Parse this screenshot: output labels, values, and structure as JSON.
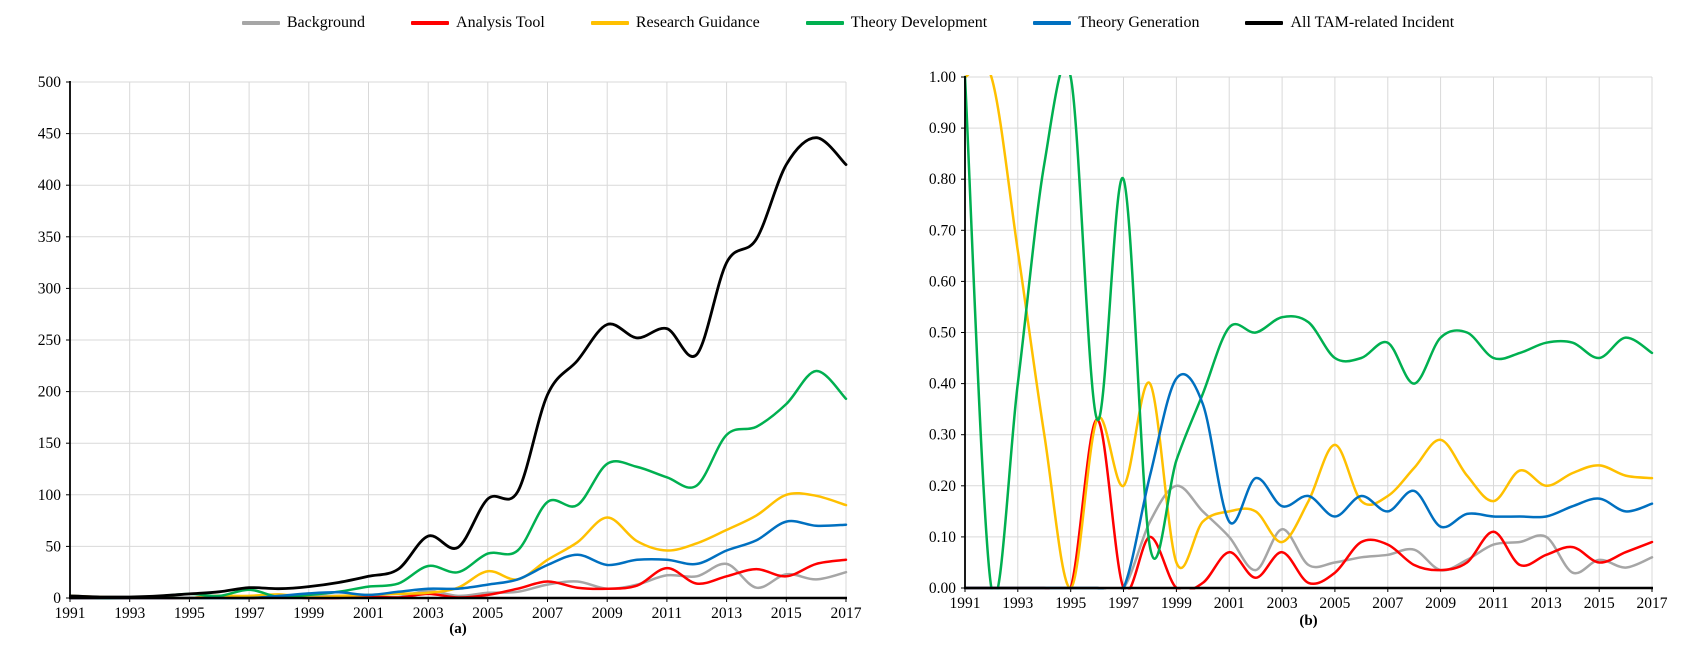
{
  "legend": {
    "items": [
      {
        "label": "Background",
        "color": "#A6A6A6"
      },
      {
        "label": "Analysis Tool",
        "color": "#FF0000"
      },
      {
        "label": "Research Guidance",
        "color": "#FFC000"
      },
      {
        "label": "Theory Development",
        "color": "#00B050"
      },
      {
        "label": "Theory Generation",
        "color": "#0070C0"
      },
      {
        "label": "All TAM-related Incident",
        "color": "#000000"
      }
    ]
  },
  "grid_color": "#D9D9D9",
  "axis_color": "#000000",
  "chart_data": [
    {
      "type": "line",
      "caption": "(a)",
      "title": "",
      "xlabel": "",
      "ylabel": "",
      "x": [
        1991,
        1992,
        1993,
        1994,
        1995,
        1996,
        1997,
        1998,
        1999,
        2000,
        2001,
        2002,
        2003,
        2004,
        2005,
        2006,
        2007,
        2008,
        2009,
        2010,
        2011,
        2012,
        2013,
        2014,
        2015,
        2016,
        2017
      ],
      "x_tick_step": 2,
      "y_axis": {
        "min": 0,
        "max": 500,
        "step": 50,
        "decimals": 0
      },
      "grid": true,
      "legend_position": "top-shared",
      "series": [
        {
          "name": "Background",
          "color": "#A6A6A6",
          "width": 2.5,
          "values": [
            0,
            0,
            0,
            0,
            0,
            0,
            0,
            1,
            2,
            2,
            2,
            1,
            7,
            2,
            5,
            6,
            13,
            16,
            9,
            13,
            22,
            21,
            33,
            10,
            23,
            18,
            25
          ]
        },
        {
          "name": "Analysis Tool",
          "color": "#FF0000",
          "width": 2.5,
          "values": [
            0,
            0,
            0,
            0,
            0,
            2,
            0,
            1,
            0,
            0,
            1.5,
            0.5,
            4,
            0.5,
            3,
            9,
            16,
            10,
            9,
            12,
            29,
            14,
            21,
            28,
            21,
            33,
            37
          ]
        },
        {
          "name": "Research Guidance",
          "color": "#FFC000",
          "width": 2.5,
          "values": [
            2,
            1,
            0.7,
            0.6,
            0,
            2,
            2,
            3.5,
            0.5,
            2,
            3,
            4,
            5,
            10,
            26,
            18,
            37,
            54,
            78,
            55,
            46,
            53,
            66,
            80,
            100,
            99,
            90
          ]
        },
        {
          "name": "Theory Development",
          "color": "#00B050",
          "width": 2.5,
          "values": [
            2,
            0,
            0.5,
            1.7,
            4,
            2,
            8,
            1,
            3,
            6,
            11,
            14,
            31,
            25,
            43,
            46,
            93,
            90,
            130,
            127,
            117,
            109,
            158,
            166,
            188,
            220,
            193
          ]
        },
        {
          "name": "Theory Generation",
          "color": "#0070C0",
          "width": 2.5,
          "values": [
            0,
            0,
            0,
            0,
            0,
            0,
            0,
            2,
            4.5,
            5.5,
            3,
            6,
            9,
            9,
            13,
            18,
            32,
            42,
            32,
            37,
            37,
            33,
            46,
            56,
            74,
            70,
            71
          ]
        },
        {
          "name": "All TAM-related Incident",
          "color": "#000000",
          "width": 2.8,
          "values": [
            2,
            1,
            1,
            2,
            4,
            6,
            10,
            9,
            11,
            15,
            21,
            28,
            60,
            49,
            96,
            103,
            197,
            230,
            265,
            252,
            261,
            236,
            325,
            348,
            420,
            446,
            420
          ]
        }
      ]
    },
    {
      "type": "line",
      "caption": "(b)",
      "title": "",
      "xlabel": "",
      "ylabel": "",
      "x": [
        1991,
        1992,
        1993,
        1994,
        1995,
        1996,
        1997,
        1998,
        1999,
        2000,
        2001,
        2002,
        2003,
        2004,
        2005,
        2006,
        2007,
        2008,
        2009,
        2010,
        2011,
        2012,
        2013,
        2014,
        2015,
        2016,
        2017
      ],
      "x_tick_step": 2,
      "y_axis": {
        "min": 0,
        "max": 1,
        "step": 0.1,
        "decimals": 2
      },
      "grid": true,
      "legend_position": "top-shared",
      "series": [
        {
          "name": "Background",
          "color": "#A6A6A6",
          "width": 2.5,
          "values": [
            0,
            0,
            0,
            0,
            0,
            0,
            0,
            0.13,
            0.2,
            0.15,
            0.1,
            0.035,
            0.115,
            0.045,
            0.05,
            0.06,
            0.065,
            0.075,
            0.035,
            0.055,
            0.085,
            0.09,
            0.1,
            0.03,
            0.055,
            0.04,
            0.06
          ]
        },
        {
          "name": "Analysis Tool",
          "color": "#FF0000",
          "width": 2.5,
          "values": [
            0,
            0,
            0,
            0,
            0,
            0.33,
            0,
            0.1,
            0,
            0.01,
            0.07,
            0.02,
            0.07,
            0.01,
            0.03,
            0.09,
            0.085,
            0.045,
            0.035,
            0.05,
            0.11,
            0.045,
            0.065,
            0.08,
            0.05,
            0.07,
            0.09
          ]
        },
        {
          "name": "Research Guidance",
          "color": "#FFC000",
          "width": 2.5,
          "values": [
            1,
            1,
            0.66,
            0.3,
            0,
            0.33,
            0.2,
            0.4,
            0.05,
            0.13,
            0.15,
            0.15,
            0.09,
            0.17,
            0.28,
            0.17,
            0.18,
            0.235,
            0.29,
            0.22,
            0.17,
            0.23,
            0.2,
            0.225,
            0.24,
            0.22,
            0.215
          ]
        },
        {
          "name": "Theory Development",
          "color": "#00B050",
          "width": 2.5,
          "values": [
            1,
            0,
            0.4,
            0.83,
            1,
            0.33,
            0.8,
            0.08,
            0.25,
            0.38,
            0.51,
            0.5,
            0.53,
            0.52,
            0.45,
            0.45,
            0.48,
            0.4,
            0.49,
            0.5,
            0.45,
            0.46,
            0.48,
            0.48,
            0.45,
            0.49,
            0.46
          ]
        },
        {
          "name": "Theory Generation",
          "color": "#0070C0",
          "width": 2.5,
          "values": [
            0,
            0,
            0,
            0,
            0,
            0,
            0,
            0.22,
            0.41,
            0.36,
            0.13,
            0.215,
            0.16,
            0.18,
            0.14,
            0.18,
            0.15,
            0.19,
            0.12,
            0.145,
            0.14,
            0.14,
            0.14,
            0.16,
            0.175,
            0.15,
            0.165
          ]
        }
      ]
    }
  ]
}
